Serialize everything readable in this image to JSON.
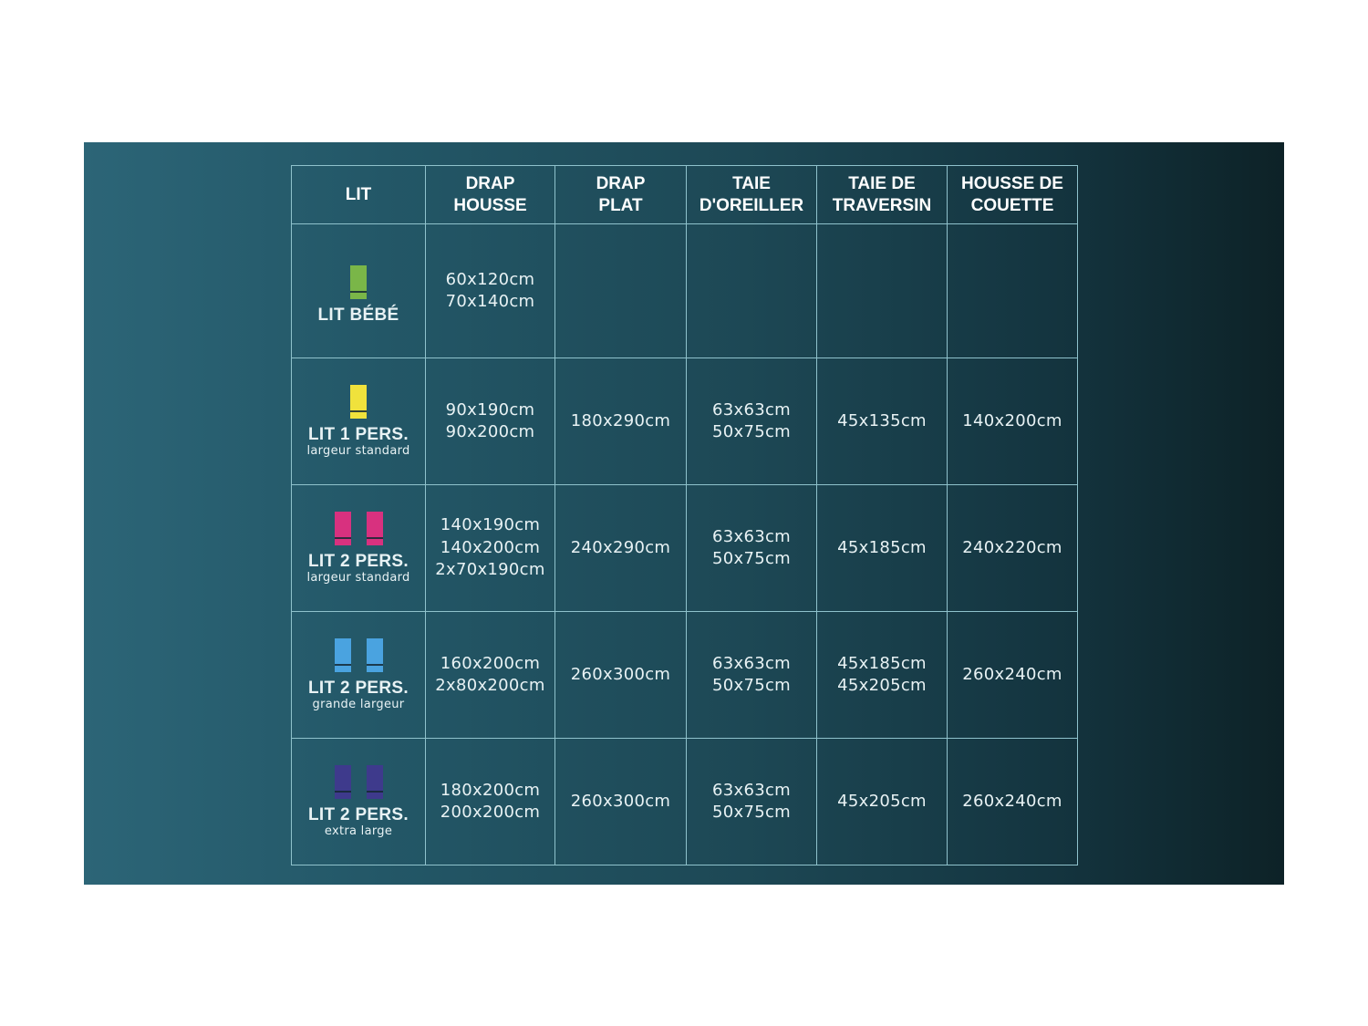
{
  "headers": [
    "LIT",
    "DRAP\nHOUSSE",
    "DRAP\nPLAT",
    "TAIE\nD'OREILLER",
    "TAIE DE\nTRAVERSIN",
    "HOUSSE DE\nCOUETTE"
  ],
  "rows": [
    {
      "name": "LIT BÉBÉ",
      "sub": "",
      "icon_color": "#7ab648",
      "icon_count": 1,
      "cells": [
        [
          "60x120cm",
          "70x140cm"
        ],
        [],
        [],
        [],
        []
      ]
    },
    {
      "name": "LIT 1 PERS.",
      "sub": "largeur standard",
      "icon_color": "#f0e23c",
      "icon_count": 1,
      "cells": [
        [
          "90x190cm",
          "90x200cm"
        ],
        [
          "180x290cm"
        ],
        [
          "63x63cm",
          "50x75cm"
        ],
        [
          "45x135cm"
        ],
        [
          "140x200cm"
        ]
      ]
    },
    {
      "name": "LIT 2 PERS.",
      "sub": "largeur standard",
      "icon_color": "#d8317f",
      "icon_count": 2,
      "cells": [
        [
          "140x190cm",
          "140x200cm",
          "2x70x190cm"
        ],
        [
          "240x290cm"
        ],
        [
          "63x63cm",
          "50x75cm"
        ],
        [
          "45x185cm"
        ],
        [
          "240x220cm"
        ]
      ]
    },
    {
      "name": "LIT 2 PERS.",
      "sub": "grande largeur",
      "icon_color": "#4aa3e0",
      "icon_count": 2,
      "cells": [
        [
          "160x200cm",
          "2x80x200cm"
        ],
        [
          "260x300cm"
        ],
        [
          "63x63cm",
          "50x75cm"
        ],
        [
          "45x185cm",
          "45x205cm"
        ],
        [
          "260x240cm"
        ]
      ]
    },
    {
      "name": "LIT 2 PERS.",
      "sub": "extra large",
      "icon_color": "#3e3a8c",
      "icon_count": 2,
      "cells": [
        [
          "180x200cm",
          "200x200cm"
        ],
        [
          "260x300cm"
        ],
        [
          "63x63cm",
          "50x75cm"
        ],
        [
          "45x205cm"
        ],
        [
          "260x240cm"
        ]
      ]
    }
  ]
}
